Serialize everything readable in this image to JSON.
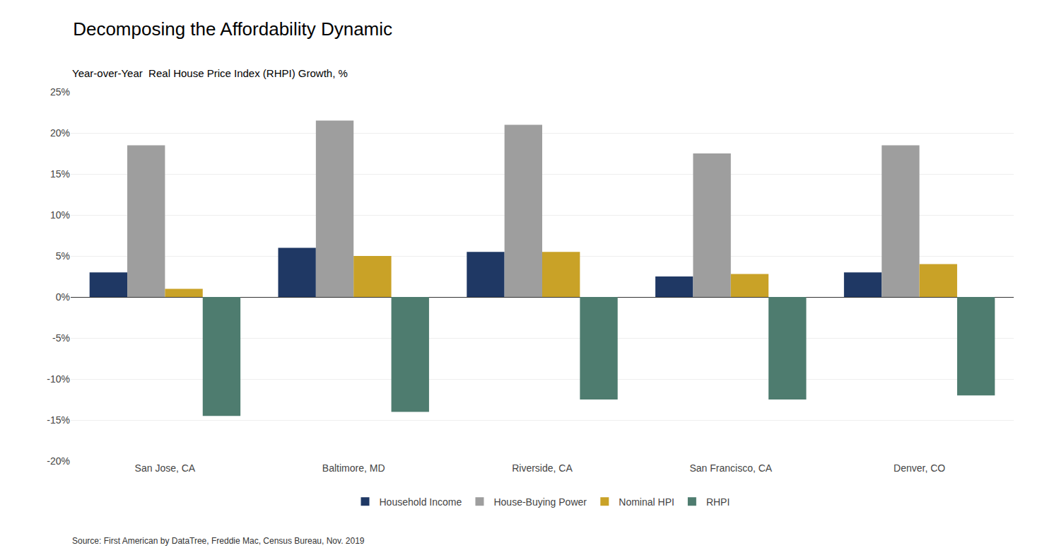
{
  "chart_data": {
    "type": "bar",
    "title": "Decomposing the Affordability Dynamic",
    "subtitle": "Year-over-Year  Real House Price Index (RHPI) Growth, %",
    "source": "Source: First American by DataTree, Freddie Mac, Census Bureau, Nov. 2019",
    "categories": [
      "San Jose, CA",
      "Baltimore, MD",
      "Riverside, CA",
      "San Francisco, CA",
      "Denver, CO"
    ],
    "series": [
      {
        "name": "Household Income",
        "color": "#1f3864",
        "values": [
          3.0,
          6.0,
          5.5,
          2.5,
          3.0
        ]
      },
      {
        "name": "House-Buying Power",
        "color": "#9e9e9e",
        "values": [
          18.5,
          21.5,
          21.0,
          17.5,
          18.5
        ]
      },
      {
        "name": "Nominal HPI",
        "color": "#c9a227",
        "values": [
          1.0,
          5.0,
          5.5,
          2.8,
          4.0
        ]
      },
      {
        "name": "RHPI",
        "color": "#4e7c6f",
        "values": [
          -14.5,
          -14.0,
          -12.5,
          -12.5,
          -12.0
        ]
      }
    ],
    "ylim": [
      -20,
      25
    ],
    "yticks": [
      {
        "value": -20,
        "label": "-20%"
      },
      {
        "value": -15,
        "label": "-15%"
      },
      {
        "value": -10,
        "label": "-10%"
      },
      {
        "value": -5,
        "label": "-5%"
      },
      {
        "value": 0,
        "label": "0%"
      },
      {
        "value": 5,
        "label": "5%"
      },
      {
        "value": 10,
        "label": "10%"
      },
      {
        "value": 15,
        "label": "15%"
      },
      {
        "value": 20,
        "label": "20%"
      },
      {
        "value": 25,
        "label": "25%"
      }
    ],
    "grid": true,
    "legend": "bottom"
  }
}
